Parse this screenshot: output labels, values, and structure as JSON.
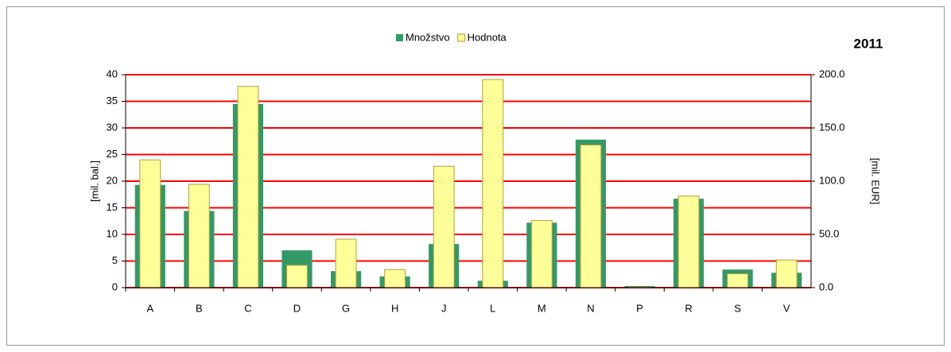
{
  "chart_data": {
    "type": "bar",
    "title": "2011",
    "ylabel": "[mil. bal.]",
    "y2label": "[mil. EUR]",
    "categories": [
      "A",
      "B",
      "C",
      "D",
      "G",
      "H",
      "J",
      "L",
      "M",
      "N",
      "P",
      "R",
      "S",
      "V"
    ],
    "series": [
      {
        "name": "Množstvo",
        "color": "#339966",
        "values": [
          19.3,
          14.4,
          34.5,
          7.0,
          3.1,
          2.1,
          8.2,
          1.3,
          12.2,
          27.8,
          0.3,
          16.7,
          3.4,
          2.8
        ]
      },
      {
        "name": "Hodnota",
        "color": "#ffff99",
        "axis": "y2",
        "values": [
          120,
          97,
          189,
          21,
          45.5,
          17,
          114,
          195.5,
          63,
          134,
          0.5,
          86,
          13,
          26
        ]
      }
    ],
    "ylim": [
      0,
      40
    ],
    "yticks": [
      0,
      5,
      10,
      15,
      20,
      25,
      30,
      35,
      40
    ],
    "y2lim": [
      0,
      200
    ],
    "y2ticks": [
      {
        "value": 0,
        "label": "0.0"
      },
      {
        "value": 50,
        "label": "50.0"
      },
      {
        "value": 100,
        "label": "100.0"
      },
      {
        "value": 150,
        "label": "150.0"
      },
      {
        "value": 200,
        "label": "200.0"
      }
    ],
    "grid": true,
    "grid_color": "#ff0000",
    "legend": "top"
  }
}
